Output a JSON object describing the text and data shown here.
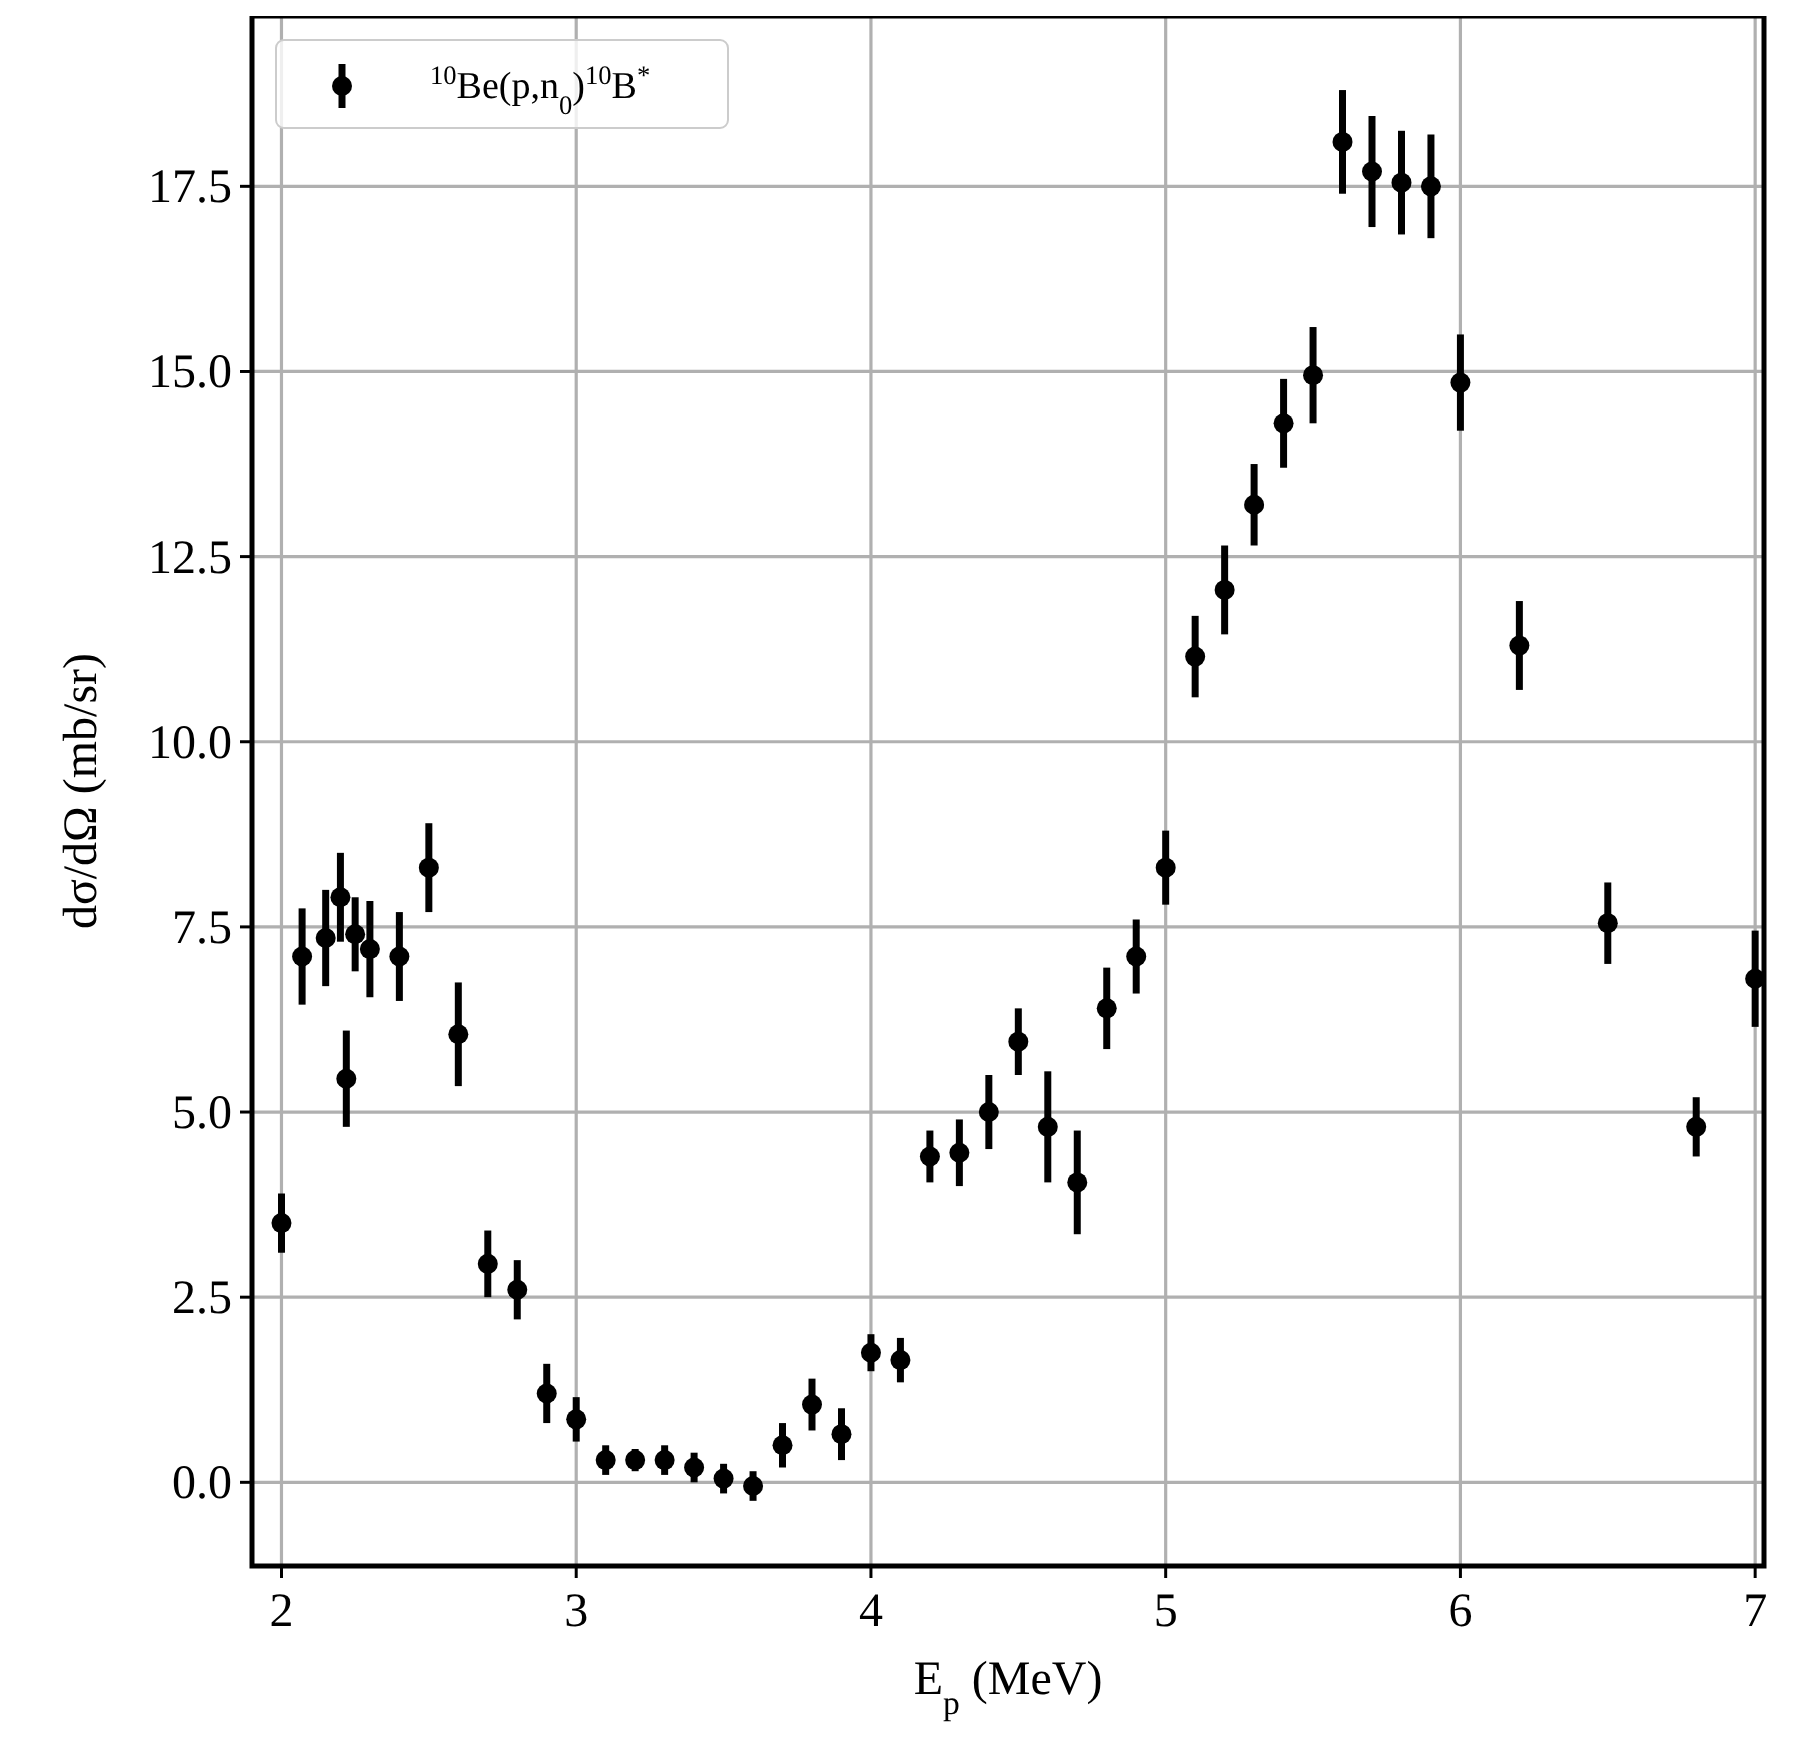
{
  "chart_data": {
    "type": "scatter",
    "xlabel": "E$_{p}$ (MeV)",
    "ylabel": "dσ/dΩ (mb/sr)",
    "xlim": [
      1.9,
      7.03
    ],
    "ylim": [
      -1.13,
      19.8
    ],
    "xticks": [
      2,
      3,
      4,
      5,
      6,
      7
    ],
    "yticks": [
      {
        "value": 0,
        "label": "0.0"
      },
      {
        "value": 2.5,
        "label": "2.5"
      },
      {
        "value": 5,
        "label": "5.0"
      },
      {
        "value": 7.5,
        "label": "7.5"
      },
      {
        "value": 10,
        "label": "10.0"
      },
      {
        "value": 12.5,
        "label": "12.5"
      },
      {
        "value": 15,
        "label": "15.0"
      },
      {
        "value": 17.5,
        "label": "17.5"
      }
    ],
    "grid": true,
    "legend": "top left",
    "marker": "circle",
    "series": [
      {
        "name": "$^{10}$Be(p,n$_{0}$)$^{10}$B$^{*}$",
        "color": "#000000",
        "x": [
          2.0,
          2.07,
          2.15,
          2.2,
          2.22,
          2.25,
          2.3,
          2.4,
          2.5,
          2.6,
          2.7,
          2.8,
          2.9,
          3.0,
          3.1,
          3.2,
          3.3,
          3.4,
          3.5,
          3.6,
          3.7,
          3.8,
          3.9,
          4.0,
          4.1,
          4.2,
          4.3,
          4.4,
          4.5,
          4.6,
          4.7,
          4.8,
          4.9,
          5.0,
          5.1,
          5.2,
          5.3,
          5.4,
          5.5,
          5.6,
          5.7,
          5.8,
          5.9,
          6.0,
          6.2,
          6.5,
          6.8,
          7.0
        ],
        "values": [
          3.5,
          7.1,
          7.35,
          7.9,
          5.45,
          7.4,
          7.2,
          7.1,
          8.3,
          6.05,
          2.95,
          2.6,
          1.2,
          0.85,
          0.3,
          0.3,
          0.3,
          0.2,
          0.05,
          -0.05,
          0.5,
          1.05,
          0.65,
          1.75,
          1.65,
          4.4,
          4.45,
          5.0,
          5.95,
          4.8,
          4.05,
          6.4,
          7.1,
          8.3,
          11.15,
          12.05,
          13.2,
          14.3,
          14.95,
          18.1,
          17.7,
          17.55,
          17.5,
          14.85,
          11.3,
          7.55,
          4.8,
          6.8
        ],
        "errors": [
          0.4,
          0.65,
          0.65,
          0.6,
          0.65,
          0.5,
          0.65,
          0.6,
          0.6,
          0.7,
          0.45,
          0.4,
          0.4,
          0.3,
          0.2,
          0.15,
          0.2,
          0.2,
          0.2,
          0.2,
          0.3,
          0.35,
          0.35,
          0.25,
          0.3,
          0.35,
          0.45,
          0.5,
          0.45,
          0.75,
          0.7,
          0.55,
          0.5,
          0.5,
          0.55,
          0.6,
          0.55,
          0.6,
          0.65,
          0.7,
          0.75,
          0.7,
          0.7,
          0.65,
          0.6,
          0.55,
          0.4,
          0.65
        ]
      }
    ]
  }
}
